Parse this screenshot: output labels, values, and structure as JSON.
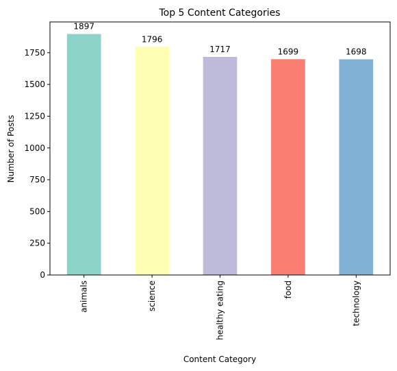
{
  "chart_data": {
    "type": "bar",
    "title": "Top 5 Content Categories",
    "xlabel": "Content Category",
    "ylabel": "Number of Posts",
    "categories": [
      "animals",
      "science",
      "healthy eating",
      "food",
      "technology"
    ],
    "values": [
      1897,
      1796,
      1717,
      1699,
      1698
    ],
    "data_labels": [
      "1897",
      "1796",
      "1717",
      "1699",
      "1698"
    ],
    "colors": [
      "#8dd3c7",
      "#ffffb3",
      "#bebada",
      "#fb8072",
      "#80b1d3"
    ],
    "y_ticks": [
      0,
      250,
      500,
      750,
      1000,
      1250,
      1500,
      1750
    ],
    "ylim": [
      0,
      1992
    ],
    "grid": false,
    "x_tick_rotation": "vertical"
  }
}
